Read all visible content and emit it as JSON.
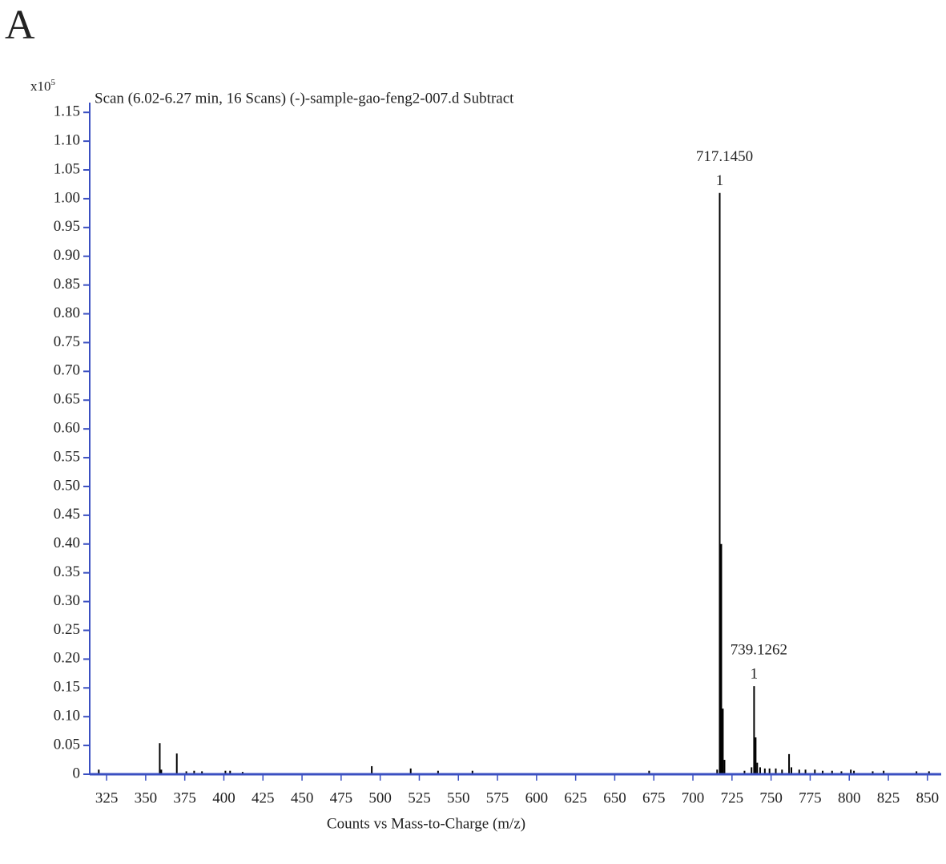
{
  "panel_label": "A",
  "chart_data": {
    "type": "spectrum",
    "title": "Scan (6.02-6.27 min, 16 Scans) (-)-sample-gao-feng2-007.d  Subtract",
    "y_scale_base": "x10",
    "y_scale_exponent": "5",
    "x_label": "Counts vs Mass-to-Charge (m/z)",
    "color": "#000000",
    "axis_color": "#3a4fc1",
    "xlim": [
      314.2,
      858.8
    ],
    "ylim": [
      0,
      1.167
    ],
    "xticks": [
      325,
      350,
      375,
      400,
      425,
      450,
      475,
      500,
      525,
      550,
      575,
      600,
      625,
      650,
      675,
      700,
      725,
      750,
      775,
      800,
      825,
      850
    ],
    "yticks": [
      0,
      0.05,
      {
        "value": 0.1,
        "label": "0.10"
      },
      0.15,
      {
        "value": 0.2,
        "label": "0.20"
      },
      0.25,
      {
        "value": 0.3,
        "label": "0.30"
      },
      0.35,
      {
        "value": 0.4,
        "label": "0.40"
      },
      0.45,
      {
        "value": 0.5,
        "label": "0.50"
      },
      0.55,
      {
        "value": 0.6,
        "label": "0.60"
      },
      0.65,
      {
        "value": 0.7,
        "label": "0.70"
      },
      0.75,
      {
        "value": 0.8,
        "label": "0.80"
      },
      0.85,
      {
        "value": 0.9,
        "label": "0.90"
      },
      0.95,
      {
        "value": 1,
        "label": "1.00"
      },
      1.05,
      {
        "value": 1.1,
        "label": "1.10"
      },
      1.15
    ],
    "x": [
      320,
      359,
      360,
      369.9,
      376,
      381,
      386,
      401,
      404,
      412,
      494.6,
      519.5,
      537,
      559,
      672,
      715.5,
      717.145,
      718.15,
      719.15,
      720.2,
      733,
      737.5,
      739.126,
      740.13,
      741.13,
      743,
      746,
      749,
      753,
      757,
      761.5,
      763,
      768,
      772,
      778,
      783,
      789,
      795,
      801,
      803,
      815,
      822,
      843,
      851
    ],
    "values": [
      0.008,
      0.054,
      0.008,
      0.036,
      0.005,
      0.006,
      0.005,
      0.006,
      0.006,
      0.004,
      0.014,
      0.01,
      0.006,
      0.006,
      0.006,
      0.008,
      1.01,
      0.4,
      0.114,
      0.025,
      0.006,
      0.012,
      0.153,
      0.064,
      0.02,
      0.012,
      0.01,
      0.01,
      0.01,
      0.008,
      0.035,
      0.012,
      0.008,
      0.008,
      0.008,
      0.006,
      0.006,
      0.005,
      0.008,
      0.006,
      0.005,
      0.006,
      0.005,
      0.005
    ],
    "x_labels": [
      null,
      null,
      null,
      null,
      null,
      null,
      null,
      null,
      null,
      null,
      null,
      null,
      null,
      null,
      null,
      null,
      "717.1450",
      null,
      null,
      null,
      null,
      null,
      "739.1262",
      null,
      null,
      null,
      null,
      null,
      null,
      null,
      null,
      null,
      null,
      null,
      null,
      null,
      null,
      null,
      null,
      null,
      null,
      null,
      null,
      null
    ],
    "charge_labels": [
      null,
      null,
      null,
      null,
      null,
      null,
      null,
      null,
      null,
      null,
      null,
      null,
      null,
      null,
      null,
      null,
      "1",
      null,
      null,
      null,
      null,
      null,
      "1",
      null,
      null,
      null,
      null,
      null,
      null,
      null,
      null,
      null,
      null,
      null,
      null,
      null,
      null,
      null,
      null,
      null,
      null,
      null,
      null,
      null
    ]
  }
}
